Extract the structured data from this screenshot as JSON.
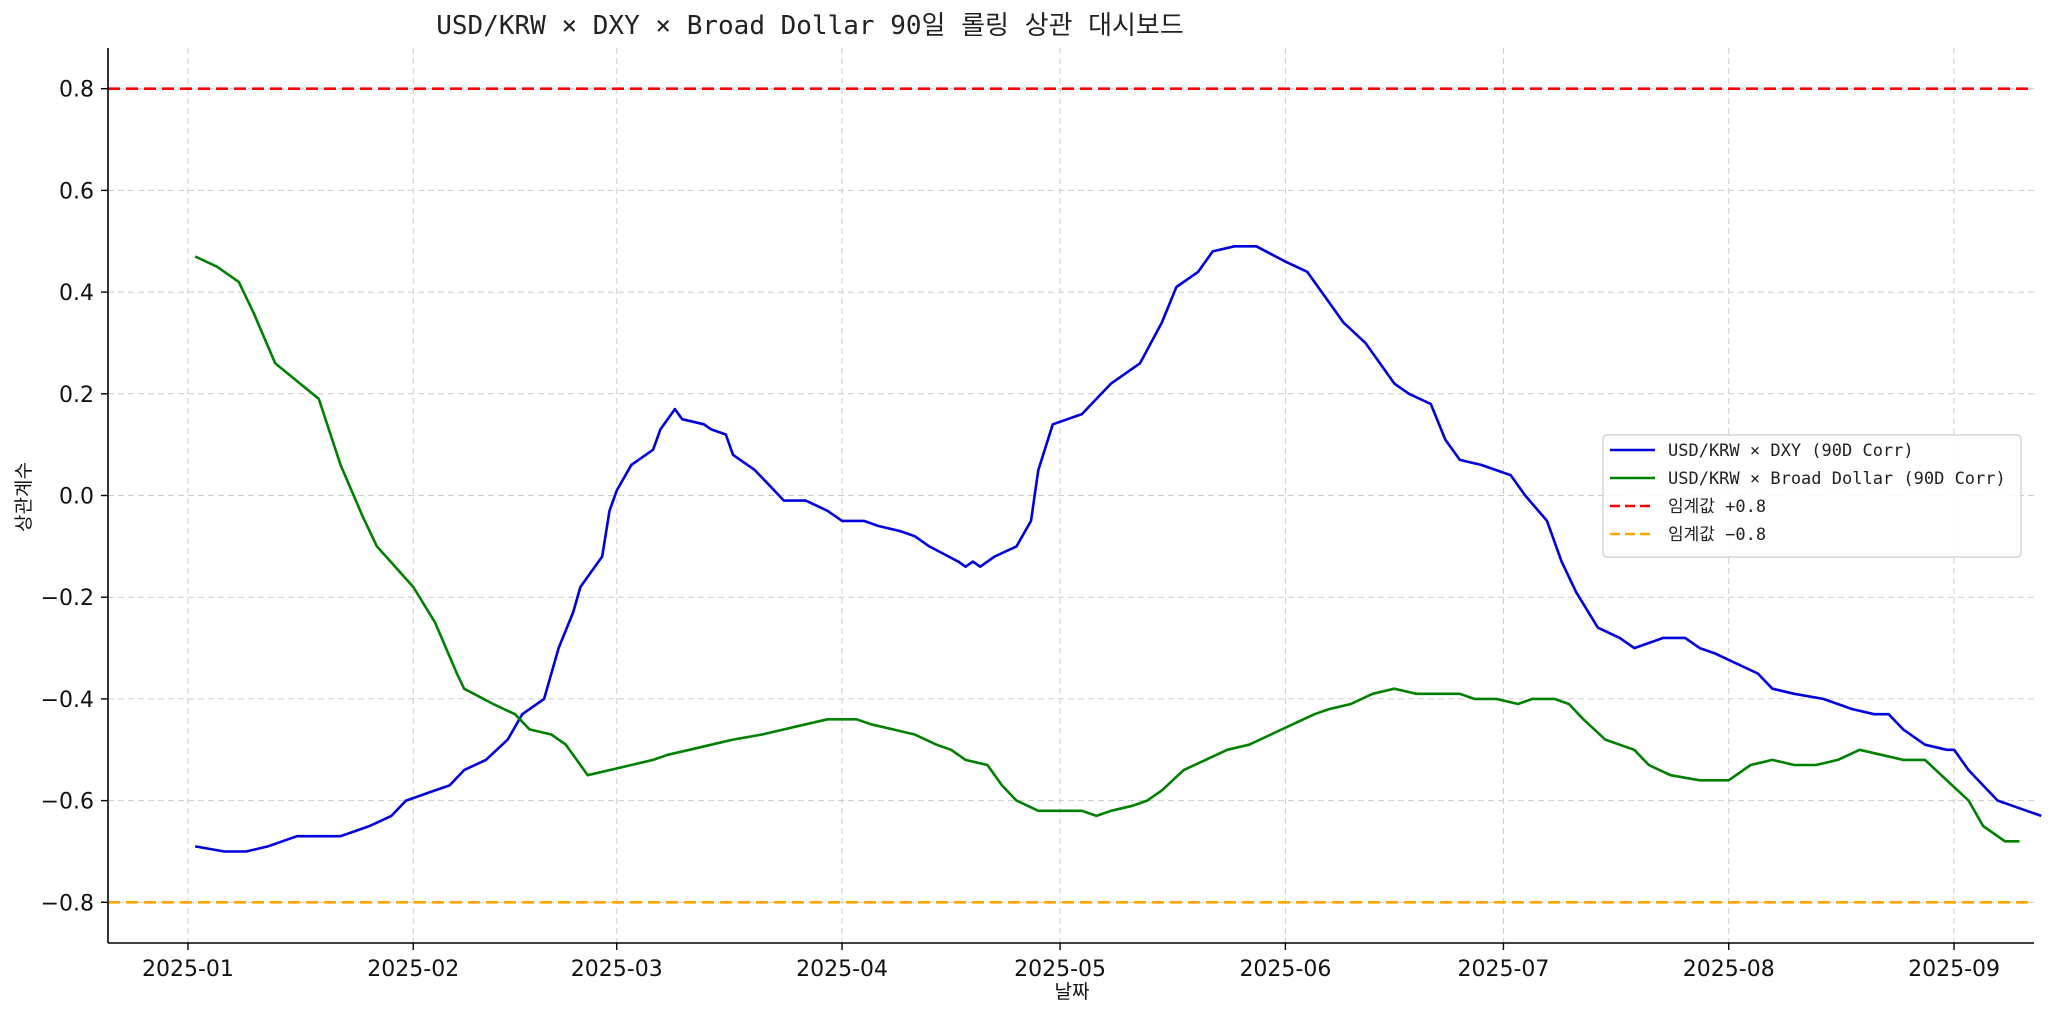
{
  "chart_data": {
    "type": "line",
    "title": "USD/KRW × DXY × Broad Dollar 90일 롤링 상관 대시보드",
    "xlabel": "날짜",
    "ylabel": "상관계수",
    "xlim": [
      "2024-12-21",
      "2025-09-12"
    ],
    "ylim": [
      -0.88,
      0.88
    ],
    "x_ticks": [
      "2025-01",
      "2025-02",
      "2025-03",
      "2025-04",
      "2025-05",
      "2025-06",
      "2025-07",
      "2025-08",
      "2025-09"
    ],
    "x_tick_dates": [
      "2025-01-01",
      "2025-02-01",
      "2025-03-01",
      "2025-04-01",
      "2025-05-01",
      "2025-06-01",
      "2025-07-01",
      "2025-08-01",
      "2025-09-01"
    ],
    "y_ticks": [
      -0.8,
      -0.6,
      -0.4,
      -0.2,
      0.0,
      0.2,
      0.4,
      0.6,
      0.8
    ],
    "y_tick_labels": [
      "−0.8",
      "−0.6",
      "−0.4",
      "−0.2",
      "0.0",
      "0.2",
      "0.4",
      "0.6",
      "0.8"
    ],
    "grid": true,
    "legend_position": "center-right",
    "series": [
      {
        "name": "USD/KRW × DXY (90D Corr)",
        "color": "#0000dd",
        "style": "solid",
        "points": [
          [
            "2025-01-02",
            -0.69
          ],
          [
            "2025-01-06",
            -0.7
          ],
          [
            "2025-01-09",
            -0.7
          ],
          [
            "2025-01-12",
            -0.69
          ],
          [
            "2025-01-14",
            -0.68
          ],
          [
            "2025-01-16",
            -0.67
          ],
          [
            "2025-01-19",
            -0.67
          ],
          [
            "2025-01-22",
            -0.67
          ],
          [
            "2025-01-24",
            -0.66
          ],
          [
            "2025-01-26",
            -0.65
          ],
          [
            "2025-01-29",
            -0.63
          ],
          [
            "2025-01-31",
            -0.6
          ],
          [
            "2025-02-04",
            -0.58
          ],
          [
            "2025-02-06",
            -0.57
          ],
          [
            "2025-02-08",
            -0.54
          ],
          [
            "2025-02-11",
            -0.52
          ],
          [
            "2025-02-14",
            -0.48
          ],
          [
            "2025-02-16",
            -0.43
          ],
          [
            "2025-02-19",
            -0.4
          ],
          [
            "2025-02-21",
            -0.3
          ],
          [
            "2025-02-23",
            -0.23
          ],
          [
            "2025-02-24",
            -0.18
          ],
          [
            "2025-02-27",
            -0.12
          ],
          [
            "2025-02-28",
            -0.03
          ],
          [
            "2025-03-01",
            0.01
          ],
          [
            "2025-03-03",
            0.06
          ],
          [
            "2025-03-06",
            0.09
          ],
          [
            "2025-03-07",
            0.13
          ],
          [
            "2025-03-09",
            0.17
          ],
          [
            "2025-03-10",
            0.15
          ],
          [
            "2025-03-13",
            0.14
          ],
          [
            "2025-03-14",
            0.13
          ],
          [
            "2025-03-16",
            0.12
          ],
          [
            "2025-03-17",
            0.08
          ],
          [
            "2025-03-20",
            0.05
          ],
          [
            "2025-03-22",
            0.02
          ],
          [
            "2025-03-24",
            -0.01
          ],
          [
            "2025-03-27",
            -0.01
          ],
          [
            "2025-03-30",
            -0.03
          ],
          [
            "2025-04-01",
            -0.05
          ],
          [
            "2025-04-04",
            -0.05
          ],
          [
            "2025-04-06",
            -0.06
          ],
          [
            "2025-04-09",
            -0.07
          ],
          [
            "2025-04-11",
            -0.08
          ],
          [
            "2025-04-13",
            -0.1
          ],
          [
            "2025-04-17",
            -0.13
          ],
          [
            "2025-04-18",
            -0.14
          ],
          [
            "2025-04-19",
            -0.13
          ],
          [
            "2025-04-20",
            -0.14
          ],
          [
            "2025-04-22",
            -0.12
          ],
          [
            "2025-04-25",
            -0.1
          ],
          [
            "2025-04-27",
            -0.05
          ],
          [
            "2025-04-28",
            0.05
          ],
          [
            "2025-04-30",
            0.14
          ],
          [
            "2025-05-04",
            0.16
          ],
          [
            "2025-05-06",
            0.19
          ],
          [
            "2025-05-08",
            0.22
          ],
          [
            "2025-05-12",
            0.26
          ],
          [
            "2025-05-15",
            0.34
          ],
          [
            "2025-05-17",
            0.41
          ],
          [
            "2025-05-20",
            0.44
          ],
          [
            "2025-05-22",
            0.48
          ],
          [
            "2025-05-25",
            0.49
          ],
          [
            "2025-05-28",
            0.49
          ],
          [
            "2025-06-01",
            0.46
          ],
          [
            "2025-06-04",
            0.44
          ],
          [
            "2025-06-07",
            0.38
          ],
          [
            "2025-06-09",
            0.34
          ],
          [
            "2025-06-12",
            0.3
          ],
          [
            "2025-06-14",
            0.26
          ],
          [
            "2025-06-16",
            0.22
          ],
          [
            "2025-06-18",
            0.2
          ],
          [
            "2025-06-21",
            0.18
          ],
          [
            "2025-06-23",
            0.11
          ],
          [
            "2025-06-25",
            0.07
          ],
          [
            "2025-06-28",
            0.06
          ],
          [
            "2025-06-30",
            0.05
          ],
          [
            "2025-07-02",
            0.04
          ],
          [
            "2025-07-04",
            0.0
          ],
          [
            "2025-07-07",
            -0.05
          ],
          [
            "2025-07-09",
            -0.13
          ],
          [
            "2025-07-11",
            -0.19
          ],
          [
            "2025-07-14",
            -0.26
          ],
          [
            "2025-07-17",
            -0.28
          ],
          [
            "2025-07-19",
            -0.3
          ],
          [
            "2025-07-21",
            -0.29
          ],
          [
            "2025-07-23",
            -0.28
          ],
          [
            "2025-07-26",
            -0.28
          ],
          [
            "2025-07-28",
            -0.3
          ],
          [
            "2025-07-30",
            -0.31
          ],
          [
            "2025-08-02",
            -0.33
          ],
          [
            "2025-08-05",
            -0.35
          ],
          [
            "2025-08-07",
            -0.38
          ],
          [
            "2025-08-10",
            -0.39
          ],
          [
            "2025-08-14",
            -0.4
          ],
          [
            "2025-08-18",
            -0.42
          ],
          [
            "2025-08-21",
            -0.43
          ],
          [
            "2025-08-23",
            -0.43
          ],
          [
            "2025-08-25",
            -0.46
          ],
          [
            "2025-08-28",
            -0.49
          ],
          [
            "2025-08-31",
            -0.5
          ],
          [
            "2025-09-01",
            -0.5
          ],
          [
            "2025-09-03",
            -0.54
          ],
          [
            "2025-09-05",
            -0.57
          ],
          [
            "2025-09-07",
            -0.6
          ],
          [
            "2025-09-09",
            -0.61
          ],
          [
            "2025-09-11",
            -0.62
          ],
          [
            "2025-09-13",
            -0.63
          ]
        ]
      },
      {
        "name": "USD/KRW × Broad Dollar (90D Corr)",
        "color": "#008000",
        "style": "solid",
        "points": [
          [
            "2025-01-02",
            0.47
          ],
          [
            "2025-01-05",
            0.45
          ],
          [
            "2025-01-08",
            0.42
          ],
          [
            "2025-01-10",
            0.36
          ],
          [
            "2025-01-13",
            0.26
          ],
          [
            "2025-01-19",
            0.19
          ],
          [
            "2025-01-22",
            0.06
          ],
          [
            "2025-01-25",
            -0.04
          ],
          [
            "2025-01-27",
            -0.1
          ],
          [
            "2025-02-01",
            -0.18
          ],
          [
            "2025-02-04",
            -0.25
          ],
          [
            "2025-02-07",
            -0.35
          ],
          [
            "2025-02-08",
            -0.38
          ],
          [
            "2025-02-12",
            -0.41
          ],
          [
            "2025-02-15",
            -0.43
          ],
          [
            "2025-02-17",
            -0.46
          ],
          [
            "2025-02-20",
            -0.47
          ],
          [
            "2025-02-22",
            -0.49
          ],
          [
            "2025-02-24",
            -0.53
          ],
          [
            "2025-02-25",
            -0.55
          ],
          [
            "2025-02-28",
            -0.54
          ],
          [
            "2025-03-03",
            -0.53
          ],
          [
            "2025-03-06",
            -0.52
          ],
          [
            "2025-03-08",
            -0.51
          ],
          [
            "2025-03-11",
            -0.5
          ],
          [
            "2025-03-14",
            -0.49
          ],
          [
            "2025-03-17",
            -0.48
          ],
          [
            "2025-03-21",
            -0.47
          ],
          [
            "2025-03-24",
            -0.46
          ],
          [
            "2025-03-27",
            -0.45
          ],
          [
            "2025-03-30",
            -0.44
          ],
          [
            "2025-04-03",
            -0.44
          ],
          [
            "2025-04-05",
            -0.45
          ],
          [
            "2025-04-08",
            -0.46
          ],
          [
            "2025-04-11",
            -0.47
          ],
          [
            "2025-04-14",
            -0.49
          ],
          [
            "2025-04-16",
            -0.5
          ],
          [
            "2025-04-18",
            -0.52
          ],
          [
            "2025-04-21",
            -0.53
          ],
          [
            "2025-04-23",
            -0.57
          ],
          [
            "2025-04-25",
            -0.6
          ],
          [
            "2025-04-28",
            -0.62
          ],
          [
            "2025-05-01",
            -0.62
          ],
          [
            "2025-05-04",
            -0.62
          ],
          [
            "2025-05-06",
            -0.63
          ],
          [
            "2025-05-08",
            -0.62
          ],
          [
            "2025-05-11",
            -0.61
          ],
          [
            "2025-05-13",
            -0.6
          ],
          [
            "2025-05-15",
            -0.58
          ],
          [
            "2025-05-18",
            -0.54
          ],
          [
            "2025-05-21",
            -0.52
          ],
          [
            "2025-05-24",
            -0.5
          ],
          [
            "2025-05-27",
            -0.49
          ],
          [
            "2025-05-30",
            -0.47
          ],
          [
            "2025-06-02",
            -0.45
          ],
          [
            "2025-06-05",
            -0.43
          ],
          [
            "2025-06-07",
            -0.42
          ],
          [
            "2025-06-10",
            -0.41
          ],
          [
            "2025-06-13",
            -0.39
          ],
          [
            "2025-06-16",
            -0.38
          ],
          [
            "2025-06-19",
            -0.39
          ],
          [
            "2025-06-22",
            -0.39
          ],
          [
            "2025-06-25",
            -0.39
          ],
          [
            "2025-06-27",
            -0.4
          ],
          [
            "2025-06-30",
            -0.4
          ],
          [
            "2025-07-03",
            -0.41
          ],
          [
            "2025-07-05",
            -0.4
          ],
          [
            "2025-07-08",
            -0.4
          ],
          [
            "2025-07-10",
            -0.41
          ],
          [
            "2025-07-12",
            -0.44
          ],
          [
            "2025-07-15",
            -0.48
          ],
          [
            "2025-07-19",
            -0.5
          ],
          [
            "2025-07-21",
            -0.53
          ],
          [
            "2025-07-24",
            -0.55
          ],
          [
            "2025-07-28",
            -0.56
          ],
          [
            "2025-08-01",
            -0.56
          ],
          [
            "2025-08-04",
            -0.53
          ],
          [
            "2025-08-07",
            -0.52
          ],
          [
            "2025-08-10",
            -0.53
          ],
          [
            "2025-08-13",
            -0.53
          ],
          [
            "2025-08-16",
            -0.52
          ],
          [
            "2025-08-19",
            -0.5
          ],
          [
            "2025-08-22",
            -0.51
          ],
          [
            "2025-08-25",
            -0.52
          ],
          [
            "2025-08-28",
            -0.52
          ],
          [
            "2025-08-31",
            -0.56
          ],
          [
            "2025-09-03",
            -0.6
          ],
          [
            "2025-09-05",
            -0.65
          ],
          [
            "2025-09-08",
            -0.68
          ],
          [
            "2025-09-10",
            -0.68
          ]
        ]
      },
      {
        "name": "임계값 +0.8",
        "color": "#ff0000",
        "style": "dashed",
        "constant": 0.8
      },
      {
        "name": "임계값 −0.8",
        "color": "#ffa500",
        "style": "dashed",
        "constant": -0.8
      }
    ]
  }
}
